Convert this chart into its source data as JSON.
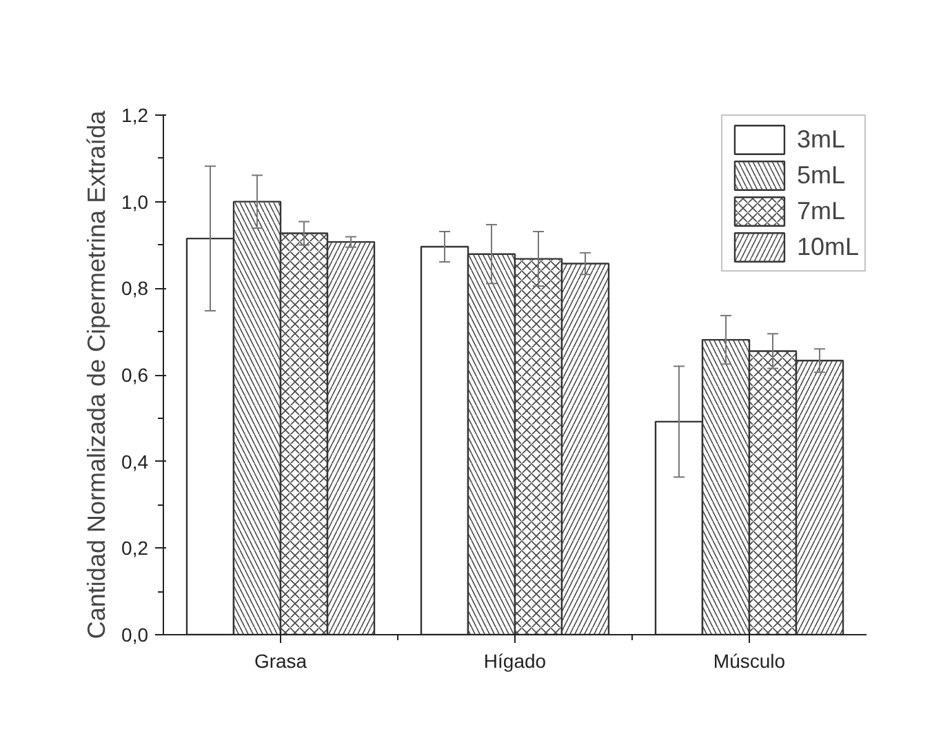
{
  "chart_data": {
    "type": "bar",
    "ylabel": "Cantidad Normalizada de Cipermetrina Extraída",
    "categories": [
      "Grasa",
      "Hígado",
      "Músculo"
    ],
    "series": [
      {
        "name": "3mL",
        "color": "#ffffff",
        "values": [
          0.915,
          0.896,
          0.492
        ],
        "errors": [
          0.167,
          0.035,
          0.128
        ]
      },
      {
        "name": "5mL",
        "color": "#ffffff",
        "values": [
          1.0,
          0.879,
          0.681
        ],
        "errors": [
          0.061,
          0.068,
          0.056
        ]
      },
      {
        "name": "7mL",
        "color": "#ffffff",
        "values": [
          0.927,
          0.868,
          0.655
        ],
        "errors": [
          0.027,
          0.063,
          0.04
        ]
      },
      {
        "name": "10mL",
        "color": "#ffffff",
        "values": [
          0.907,
          0.857,
          0.633
        ],
        "errors": [
          0.012,
          0.025,
          0.027
        ]
      }
    ],
    "ylim": [
      0,
      1.2
    ],
    "yticks": [
      {
        "value": 0,
        "label": "0,0"
      },
      {
        "value": 0.2,
        "label": "0,2"
      },
      {
        "value": 0.4,
        "label": "0,4"
      },
      {
        "value": 0.6,
        "label": "0,6"
      },
      {
        "value": 0.8,
        "label": "0,8"
      },
      {
        "value": 1.0,
        "label": "1,0"
      },
      {
        "value": 1.2,
        "label": "1,2"
      }
    ],
    "grid": false,
    "legend": "top right"
  }
}
